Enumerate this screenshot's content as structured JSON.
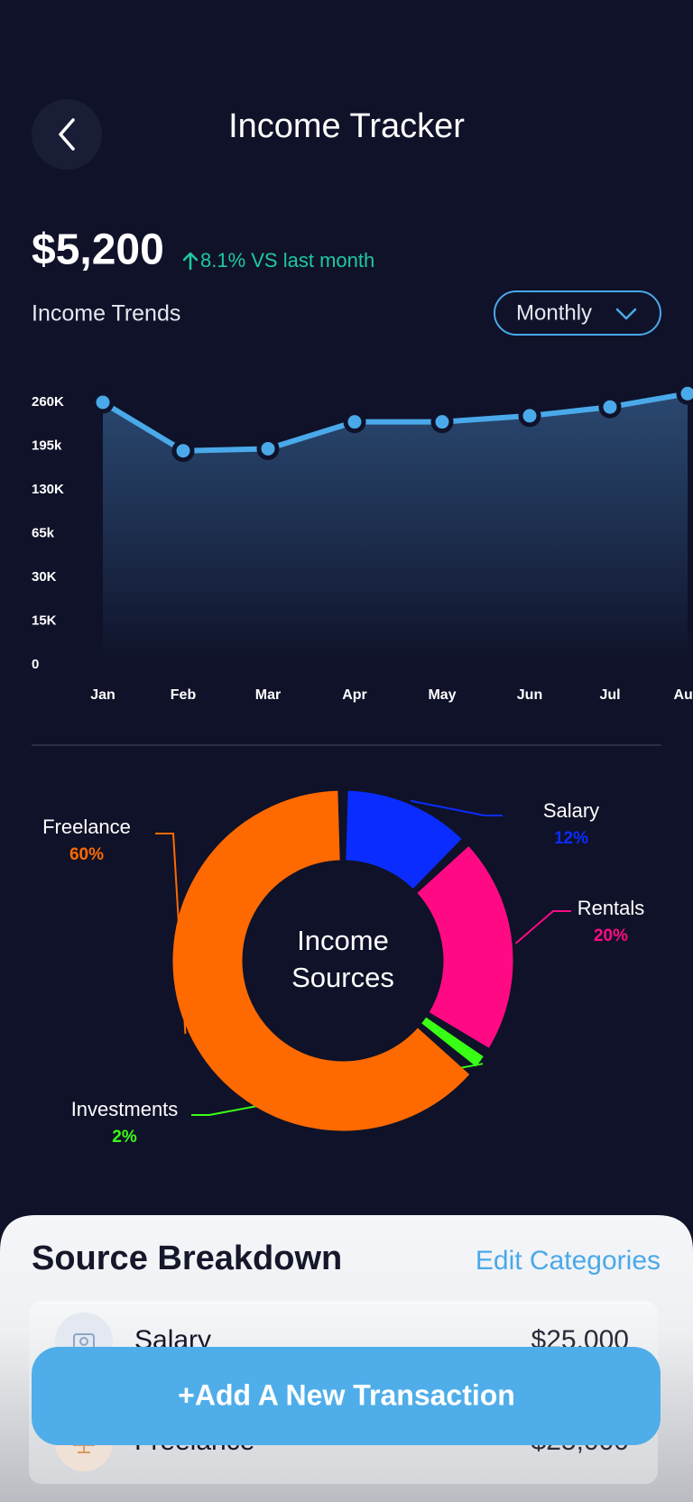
{
  "header": {
    "title": "Income Tracker"
  },
  "summary": {
    "amount": "$5,200",
    "change": "8.1% VS last month"
  },
  "period_selector": "Monthly",
  "chart_data": [
    {
      "type": "line",
      "title": "Income Trends",
      "categories": [
        "Jan",
        "Feb",
        "Mar",
        "Apr",
        "May",
        "Jun",
        "Jul",
        "Aug"
      ],
      "values": [
        260000,
        188000,
        191000,
        231000,
        231000,
        240000,
        253000,
        273000
      ],
      "color": "#4aa9e9",
      "ylim": [
        0,
        260000
      ],
      "yticks": [
        0,
        {
          "value": 15000,
          "label": "15K"
        },
        {
          "value": 30000,
          "label": "30K"
        },
        {
          "value": 65000,
          "label": "65k"
        },
        {
          "value": 130000,
          "label": "130K"
        },
        {
          "value": 195000,
          "label": "195k"
        },
        {
          "value": 260000,
          "label": "260K"
        }
      ]
    },
    {
      "type": "donut",
      "title_lines": [
        "Income",
        "Sources"
      ],
      "categories": [
        "Salary",
        "Rentals",
        "Investments",
        "Freelance"
      ],
      "values": [
        12,
        20,
        2,
        60
      ],
      "value_labels": [
        "12%",
        "20%",
        "2%",
        "60%"
      ],
      "colors": [
        "#0b2cff",
        "#ff0a84",
        "#39ff14",
        "#ff6a00"
      ]
    }
  ],
  "breakdown": {
    "title": "Source Breakdown",
    "action": "Edit Categories",
    "rows": [
      {
        "name": "Salary",
        "amount": "$25,000"
      },
      {
        "name": "Freelance",
        "amount": "$25,000"
      }
    ]
  },
  "button": "+Add A New Transaction"
}
